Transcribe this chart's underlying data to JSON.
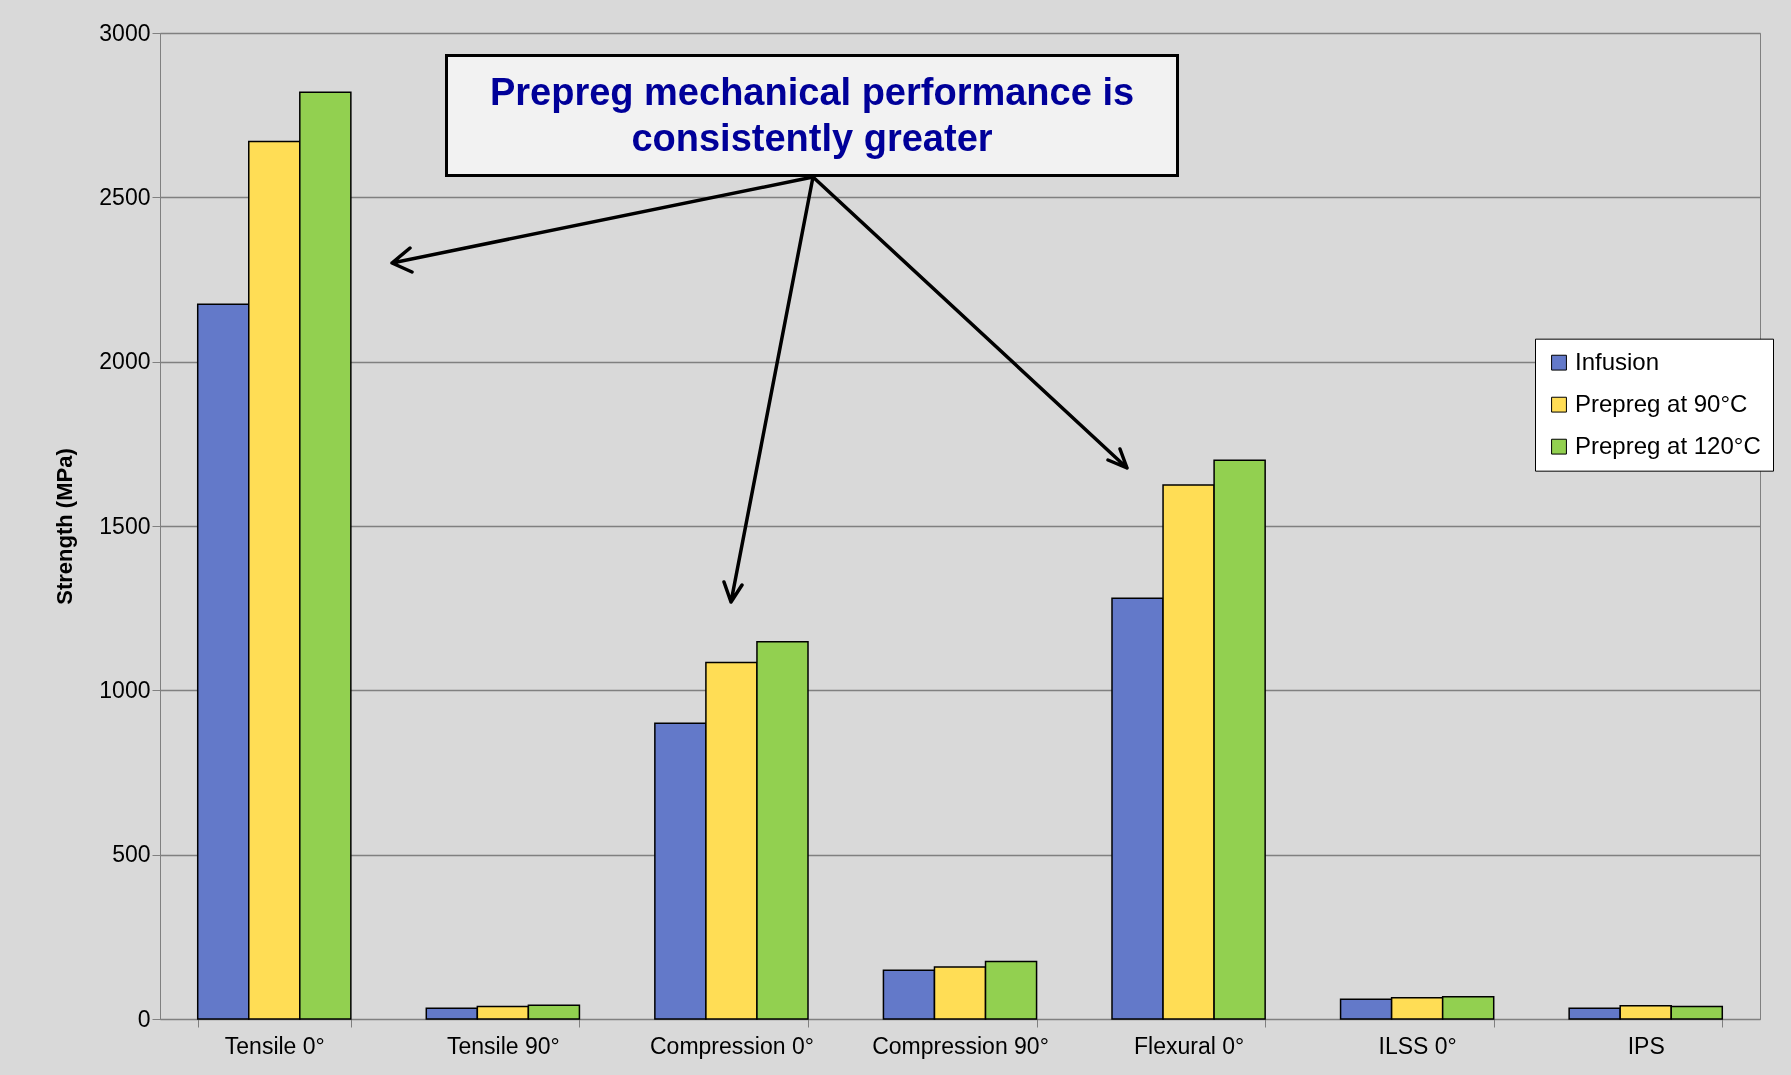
{
  "chart_data": {
    "type": "bar",
    "ylabel": "Strength (MPa)",
    "categories": [
      "Tensile 0°",
      "Tensile 90°",
      "Compression 0°",
      "Compression 90°",
      "Flexural 0°",
      "ILSS 0°",
      "IPS"
    ],
    "series": [
      {
        "name": "Infusion",
        "color": "#6379c9",
        "values": [
          2175,
          33,
          900,
          148,
          1280,
          60,
          33
        ]
      },
      {
        "name": "Prepreg at 90°C",
        "color": "#ffdd55",
        "values": [
          2670,
          38,
          1085,
          158,
          1625,
          65,
          40
        ]
      },
      {
        "name": "Prepreg at 120°C",
        "color": "#92d050",
        "values": [
          2820,
          42,
          1148,
          175,
          1700,
          68,
          38
        ]
      }
    ],
    "ylim": [
      0,
      3000
    ],
    "yticks": [
      0,
      500,
      1000,
      1500,
      2000,
      2500,
      3000
    ],
    "grid": "y",
    "legend": "right",
    "annotations": [
      "Prepreg mechanical performance is consistently greater"
    ]
  }
}
